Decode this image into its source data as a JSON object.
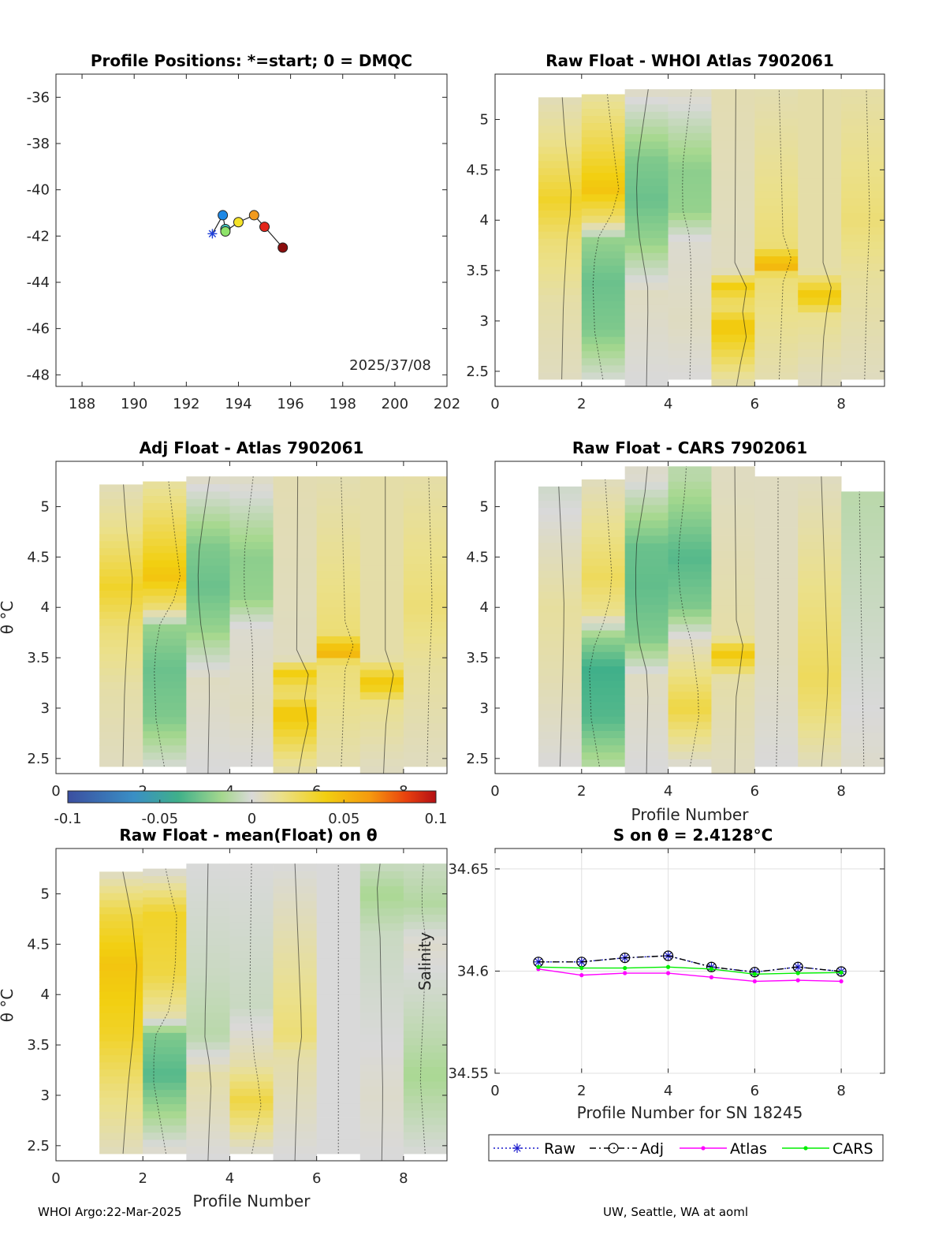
{
  "footer": {
    "left": "WHOI Argo:22-Mar-2025",
    "right": "UW, Seattle, WA at aoml"
  },
  "colorbar": {
    "ticks": [
      "-0.1",
      "-0.05",
      "0",
      "0.05",
      "0.1"
    ],
    "range": [
      -0.1,
      0.1
    ]
  },
  "chart_data": [
    {
      "id": "positions",
      "type": "scatter",
      "title": "Profile Positions: *=start; 0 = DMQC",
      "xlim": [
        187,
        202
      ],
      "ylim": [
        -48.5,
        -35
      ],
      "xticks": [
        188,
        190,
        192,
        194,
        196,
        198,
        200,
        202
      ],
      "yticks": [
        -36,
        -38,
        -40,
        -42,
        -44,
        -46,
        -48
      ],
      "points": [
        {
          "lon": 193.0,
          "lat": -41.9,
          "color": "#1f3fd8",
          "marker": "star"
        },
        {
          "lon": 193.4,
          "lat": -41.1,
          "color": "#1e88e5",
          "marker": "circle"
        },
        {
          "lon": 193.5,
          "lat": -41.7,
          "color": "#3ec9c0",
          "marker": "circle"
        },
        {
          "lon": 193.5,
          "lat": -41.8,
          "color": "#8ee36a",
          "marker": "circle"
        },
        {
          "lon": 194.0,
          "lat": -41.4,
          "color": "#f4e228",
          "marker": "circle"
        },
        {
          "lon": 194.6,
          "lat": -41.1,
          "color": "#f29a1e",
          "marker": "circle"
        },
        {
          "lon": 195.0,
          "lat": -41.6,
          "color": "#e3261b",
          "marker": "circle"
        },
        {
          "lon": 195.7,
          "lat": -42.5,
          "color": "#8b0d0d",
          "marker": "circle"
        }
      ],
      "annotation": "2025/37/08"
    },
    {
      "id": "raw-whoi",
      "type": "heatmap",
      "title": "Raw Float - WHOI Atlas  7902061",
      "ylabel": "",
      "xlim": [
        0,
        9
      ],
      "ylim": [
        2.35,
        5.45
      ],
      "xticks": [
        0,
        2,
        4,
        6,
        8
      ],
      "yticks": [
        2.5,
        3,
        3.5,
        4,
        4.5,
        5
      ],
      "profiles": [
        1,
        2,
        3,
        4,
        5,
        6,
        7,
        8
      ],
      "theta_range": [
        [
          2.42,
          5.22
        ],
        [
          2.42,
          5.25
        ],
        [
          2.35,
          5.3
        ],
        [
          2.42,
          5.3
        ],
        [
          2.35,
          5.3
        ],
        [
          2.42,
          5.3
        ],
        [
          2.35,
          5.3
        ],
        [
          2.42,
          5.3
        ]
      ],
      "anomaly_bands": [
        [
          [
            2.4,
            0.005
          ],
          [
            3.2,
            0.01
          ],
          [
            3.8,
            0.02
          ],
          [
            4.2,
            0.035
          ],
          [
            4.8,
            0.015
          ],
          [
            5.3,
            0.005
          ]
        ],
        [
          [
            2.4,
            0
          ],
          [
            2.9,
            -0.025
          ],
          [
            3.4,
            -0.03
          ],
          [
            3.8,
            -0.02
          ],
          [
            4.0,
            0.02
          ],
          [
            4.3,
            0.045
          ],
          [
            4.7,
            0.03
          ],
          [
            5.3,
            0.01
          ]
        ],
        [
          [
            2.4,
            0
          ],
          [
            3.3,
            0.005
          ],
          [
            3.8,
            -0.02
          ],
          [
            4.2,
            -0.03
          ],
          [
            4.6,
            -0.025
          ],
          [
            5.3,
            0.005
          ]
        ],
        [
          [
            2.4,
            0
          ],
          [
            3.0,
            0.005
          ],
          [
            3.8,
            0.002
          ],
          [
            4.1,
            -0.02
          ],
          [
            4.5,
            -0.022
          ],
          [
            5.3,
            0.005
          ]
        ],
        [
          [
            2.4,
            0.01
          ],
          [
            2.95,
            0.045
          ],
          [
            3.15,
            0.02
          ],
          [
            3.35,
            0.04
          ],
          [
            3.5,
            0.005
          ],
          [
            5.3,
            0.008
          ]
        ],
        [
          [
            2.4,
            0.008
          ],
          [
            3.45,
            0.02
          ],
          [
            3.55,
            0.055
          ],
          [
            3.75,
            0.02
          ],
          [
            5.3,
            0.008
          ]
        ],
        [
          [
            2.4,
            0.005
          ],
          [
            3.05,
            0.015
          ],
          [
            3.25,
            0.045
          ],
          [
            3.5,
            0.01
          ],
          [
            5.3,
            0.01
          ]
        ],
        [
          [
            2.4,
            0.005
          ],
          [
            3.4,
            0.012
          ],
          [
            4.0,
            0.02
          ],
          [
            5.3,
            0.01
          ]
        ]
      ]
    },
    {
      "id": "adj-atlas",
      "type": "heatmap",
      "title": "Adj Float - Atlas  7902061",
      "ylabel": "θ °C",
      "xlim": [
        0,
        9
      ],
      "ylim": [
        2.35,
        5.45
      ],
      "xticks": [
        0,
        2,
        4,
        6,
        8
      ],
      "yticks": [
        2.5,
        3,
        3.5,
        4,
        4.5,
        5
      ],
      "profiles": [
        1,
        2,
        3,
        4,
        5,
        6,
        7,
        8
      ],
      "theta_range": [
        [
          2.42,
          5.22
        ],
        [
          2.42,
          5.25
        ],
        [
          2.35,
          5.3
        ],
        [
          2.42,
          5.3
        ],
        [
          2.35,
          5.3
        ],
        [
          2.42,
          5.3
        ],
        [
          2.35,
          5.3
        ],
        [
          2.42,
          5.3
        ]
      ],
      "anomaly_bands": [
        [
          [
            2.4,
            0.005
          ],
          [
            3.2,
            0.01
          ],
          [
            3.8,
            0.02
          ],
          [
            4.2,
            0.035
          ],
          [
            4.8,
            0.015
          ],
          [
            5.3,
            0.005
          ]
        ],
        [
          [
            2.4,
            0
          ],
          [
            2.9,
            -0.025
          ],
          [
            3.4,
            -0.03
          ],
          [
            3.8,
            -0.02
          ],
          [
            4.0,
            0.02
          ],
          [
            4.3,
            0.045
          ],
          [
            4.7,
            0.03
          ],
          [
            5.3,
            0.01
          ]
        ],
        [
          [
            2.4,
            0
          ],
          [
            3.3,
            0.005
          ],
          [
            3.8,
            -0.02
          ],
          [
            4.2,
            -0.03
          ],
          [
            4.6,
            -0.025
          ],
          [
            5.3,
            0.005
          ]
        ],
        [
          [
            2.4,
            0
          ],
          [
            3.0,
            0.005
          ],
          [
            3.8,
            0.002
          ],
          [
            4.1,
            -0.02
          ],
          [
            4.5,
            -0.022
          ],
          [
            5.3,
            0.005
          ]
        ],
        [
          [
            2.4,
            0.01
          ],
          [
            2.95,
            0.045
          ],
          [
            3.15,
            0.02
          ],
          [
            3.35,
            0.04
          ],
          [
            3.5,
            0.005
          ],
          [
            5.3,
            0.008
          ]
        ],
        [
          [
            2.4,
            0.008
          ],
          [
            3.45,
            0.02
          ],
          [
            3.55,
            0.055
          ],
          [
            3.75,
            0.02
          ],
          [
            5.3,
            0.008
          ]
        ],
        [
          [
            2.4,
            0.005
          ],
          [
            3.05,
            0.015
          ],
          [
            3.25,
            0.045
          ],
          [
            3.5,
            0.01
          ],
          [
            5.3,
            0.01
          ]
        ],
        [
          [
            2.4,
            0.005
          ],
          [
            3.4,
            0.012
          ],
          [
            4.0,
            0.02
          ],
          [
            5.3,
            0.01
          ]
        ]
      ]
    },
    {
      "id": "raw-cars",
      "type": "heatmap",
      "title": "Raw Float - CARS  7902061",
      "xlabel": "Profile Number",
      "xlim": [
        0,
        9
      ],
      "ylim": [
        2.35,
        5.45
      ],
      "xticks": [
        0,
        2,
        4,
        6,
        8
      ],
      "yticks": [
        2.5,
        3,
        3.5,
        4,
        4.5,
        5
      ],
      "profiles": [
        1,
        2,
        3,
        4,
        5,
        6,
        7,
        8
      ],
      "theta_range": [
        [
          2.42,
          5.2
        ],
        [
          2.42,
          5.27
        ],
        [
          2.35,
          5.4
        ],
        [
          2.42,
          5.4
        ],
        [
          2.35,
          5.4
        ],
        [
          2.42,
          5.3
        ],
        [
          2.42,
          5.3
        ],
        [
          2.42,
          5.15
        ]
      ],
      "anomaly_bands": [
        [
          [
            2.4,
            0
          ],
          [
            3.3,
            0.008
          ],
          [
            4.0,
            0.012
          ],
          [
            4.6,
            0.005
          ],
          [
            5.3,
            -0.005
          ]
        ],
        [
          [
            2.4,
            -0.01
          ],
          [
            2.9,
            -0.035
          ],
          [
            3.4,
            -0.04
          ],
          [
            3.7,
            -0.02
          ],
          [
            3.95,
            0.015
          ],
          [
            4.3,
            0.025
          ],
          [
            5.3,
            0.005
          ]
        ],
        [
          [
            2.4,
            0
          ],
          [
            3.3,
            0.005
          ],
          [
            3.7,
            -0.025
          ],
          [
            4.2,
            -0.032
          ],
          [
            4.6,
            -0.03
          ],
          [
            5.3,
            0.003
          ]
        ],
        [
          [
            2.4,
            0
          ],
          [
            3.0,
            0.03
          ],
          [
            3.7,
            0.003
          ],
          [
            4.0,
            -0.025
          ],
          [
            4.5,
            -0.035
          ],
          [
            5.3,
            -0.01
          ]
        ],
        [
          [
            2.4,
            0.005
          ],
          [
            3.3,
            0.01
          ],
          [
            3.55,
            0.045
          ],
          [
            3.7,
            0.01
          ],
          [
            5.3,
            0.005
          ]
        ],
        [
          [
            2.4,
            0
          ],
          [
            3.5,
            0.005
          ],
          [
            5.3,
            0.005
          ]
        ],
        [
          [
            2.4,
            0.005
          ],
          [
            3.0,
            0.02
          ],
          [
            3.3,
            0.025
          ],
          [
            5.3,
            0.005
          ]
        ],
        [
          [
            2.4,
            0.003
          ],
          [
            4.0,
            -0.005
          ],
          [
            5.15,
            -0.01
          ]
        ]
      ]
    },
    {
      "id": "raw-mean",
      "type": "heatmap",
      "title": "Raw Float - mean(Float) on θ",
      "xlabel": "Profile Number",
      "ylabel": "θ °C",
      "xlim": [
        0,
        9
      ],
      "ylim": [
        2.35,
        5.45
      ],
      "xticks": [
        0,
        2,
        4,
        6,
        8
      ],
      "yticks": [
        2.5,
        3,
        3.5,
        4,
        4.5,
        5
      ],
      "profiles": [
        1,
        2,
        3,
        4,
        5,
        6,
        7,
        8
      ],
      "theta_range": [
        [
          2.42,
          5.22
        ],
        [
          2.42,
          5.25
        ],
        [
          2.35,
          5.3
        ],
        [
          2.42,
          5.3
        ],
        [
          2.35,
          5.3
        ],
        [
          2.42,
          5.3
        ],
        [
          2.35,
          5.3
        ],
        [
          2.42,
          5.3
        ]
      ],
      "anomaly_bands": [
        [
          [
            2.4,
            0.005
          ],
          [
            3.1,
            0.02
          ],
          [
            3.6,
            0.035
          ],
          [
            4.3,
            0.045
          ],
          [
            4.8,
            0.03
          ],
          [
            5.2,
            0.005
          ]
        ],
        [
          [
            2.4,
            0.005
          ],
          [
            2.9,
            -0.02
          ],
          [
            3.2,
            -0.035
          ],
          [
            3.6,
            -0.025
          ],
          [
            3.8,
            0.01
          ],
          [
            4.2,
            0.03
          ],
          [
            4.8,
            0.035
          ],
          [
            5.2,
            0.003
          ]
        ],
        [
          [
            2.4,
            0
          ],
          [
            3.2,
            0.01
          ],
          [
            3.6,
            -0.01
          ],
          [
            4.2,
            -0.005
          ],
          [
            5.3,
            0
          ]
        ],
        [
          [
            2.4,
            0
          ],
          [
            2.95,
            0.03
          ],
          [
            3.3,
            0.01
          ],
          [
            3.9,
            -0.005
          ],
          [
            5.3,
            0
          ]
        ],
        [
          [
            2.4,
            0
          ],
          [
            3.4,
            0.01
          ],
          [
            3.6,
            0.02
          ],
          [
            5.3,
            0
          ]
        ],
        [
          [
            2.4,
            0
          ],
          [
            5.3,
            0
          ]
        ],
        [
          [
            2.4,
            0
          ],
          [
            3.0,
            0.003
          ],
          [
            3.5,
            0
          ],
          [
            4.6,
            -0.005
          ],
          [
            5.0,
            -0.015
          ],
          [
            5.3,
            -0.005
          ]
        ],
        [
          [
            2.4,
            0
          ],
          [
            3.2,
            -0.015
          ],
          [
            3.5,
            -0.01
          ],
          [
            4.5,
            0.003
          ],
          [
            4.9,
            -0.012
          ],
          [
            5.3,
            -0.005
          ]
        ]
      ]
    },
    {
      "id": "salinity",
      "type": "line",
      "title": "S on θ = 2.4128°C",
      "xlabel": "Profile Number for SN 18245",
      "ylabel": "Salinity",
      "xlim": [
        0,
        9
      ],
      "ylim": [
        34.55,
        34.66
      ],
      "xticks": [
        0,
        2,
        4,
        6,
        8
      ],
      "yticks": [
        34.55,
        34.6,
        34.65
      ],
      "x": [
        1,
        2,
        3,
        4,
        5,
        6,
        7,
        8
      ],
      "series": [
        {
          "name": "Raw",
          "color": "#1a1acc",
          "style": "dotted",
          "marker": "star",
          "values": [
            34.6045,
            34.6045,
            34.6065,
            34.6075,
            34.602,
            34.5995,
            34.602,
            34.5998
          ]
        },
        {
          "name": "Adj",
          "color": "#000000",
          "style": "dashdot",
          "marker": "circle",
          "values": [
            34.6045,
            34.6045,
            34.6065,
            34.6075,
            34.602,
            34.5995,
            34.602,
            34.5998
          ]
        },
        {
          "name": "Atlas",
          "color": "#ff00ff",
          "style": "solid",
          "marker": "dot",
          "values": [
            34.601,
            34.598,
            34.599,
            34.599,
            34.597,
            34.595,
            34.5955,
            34.595
          ]
        },
        {
          "name": "CARS",
          "color": "#00ee00",
          "style": "solid",
          "marker": "dot",
          "values": [
            34.602,
            34.6015,
            34.6015,
            34.602,
            34.601,
            34.5985,
            34.599,
            34.5993
          ]
        }
      ]
    }
  ]
}
